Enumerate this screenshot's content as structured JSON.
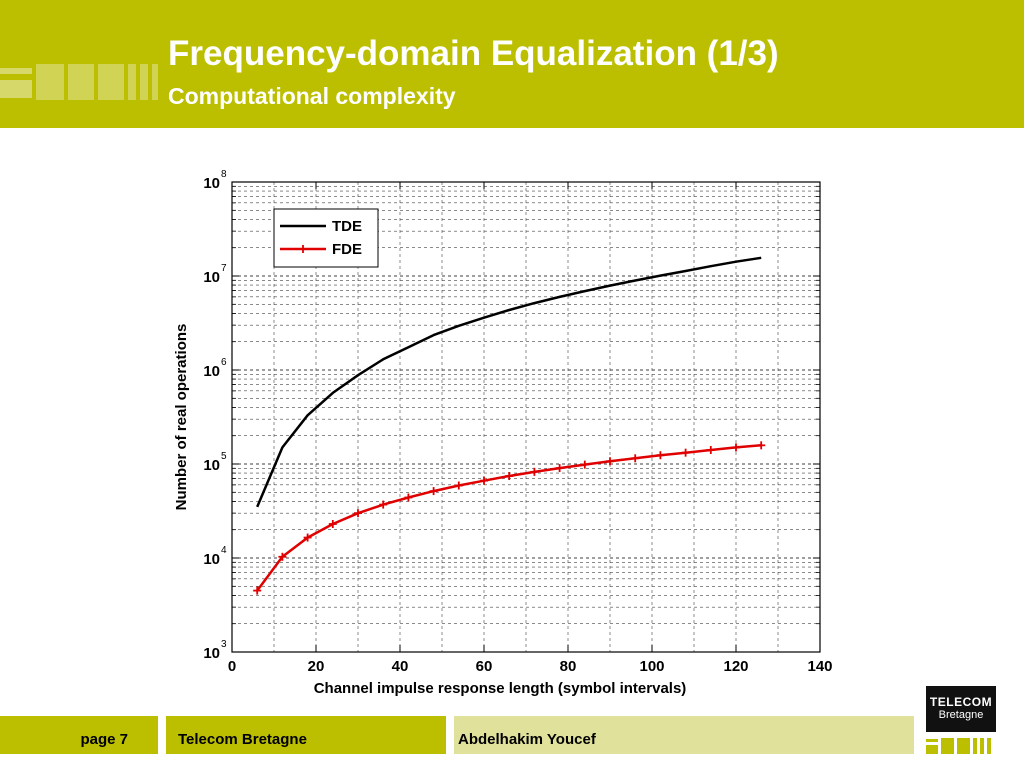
{
  "header": {
    "title": "Frequency-domain Equalization (1/3)",
    "subtitle": "Computational complexity"
  },
  "footer": {
    "page_label": "page 7",
    "institution": "Telecom Bretagne",
    "author": "Abdelhakim Youcef"
  },
  "logo": {
    "line1": "TELECOM",
    "line2": "Bretagne"
  },
  "colors": {
    "brand": "#bcbf00",
    "brand_light": "#e0e19a",
    "tde": "#000000",
    "fde": "#e00000"
  },
  "chart_data": {
    "type": "line",
    "xlabel": "Channel impulse response length (symbol intervals)",
    "ylabel": "Number of real operations",
    "xlim": [
      0,
      140
    ],
    "ylim": [
      1000,
      100000000
    ],
    "yscale": "log",
    "grid": true,
    "legend_position": "top-left",
    "x_ticks": [
      "0",
      "20",
      "40",
      "60",
      "80",
      "100",
      "120",
      "140"
    ],
    "y_ticks": [
      {
        "base": "10",
        "exp": "3"
      },
      {
        "base": "10",
        "exp": "4"
      },
      {
        "base": "10",
        "exp": "5"
      },
      {
        "base": "10",
        "exp": "6"
      },
      {
        "base": "10",
        "exp": "7"
      },
      {
        "base": "10",
        "exp": "8"
      }
    ],
    "series": [
      {
        "name": "TDE",
        "color": "#000000",
        "marker": "none",
        "x": [
          6,
          12,
          18,
          24,
          30,
          36,
          42,
          48,
          54,
          60,
          66,
          72,
          78,
          84,
          90,
          96,
          102,
          108,
          114,
          120,
          126
        ],
        "y": [
          35000,
          150000,
          330000,
          570000,
          880000,
          1300000,
          1750000,
          2350000,
          2950000,
          3600000,
          4350000,
          5150000,
          6000000,
          6900000,
          7900000,
          8950000,
          10100000,
          11300000,
          12700000,
          14200000,
          15600000
        ]
      },
      {
        "name": "FDE",
        "color": "#e00000",
        "marker": "plus",
        "x": [
          6,
          12,
          18,
          24,
          30,
          36,
          42,
          48,
          54,
          60,
          66,
          72,
          78,
          84,
          90,
          96,
          102,
          108,
          114,
          120,
          126
        ],
        "y": [
          4500,
          10300,
          16500,
          23000,
          30000,
          37000,
          44000,
          51500,
          59000,
          66500,
          74500,
          82500,
          90500,
          98500,
          107000,
          115000,
          124000,
          132000,
          141000,
          150000,
          158000
        ]
      }
    ]
  }
}
